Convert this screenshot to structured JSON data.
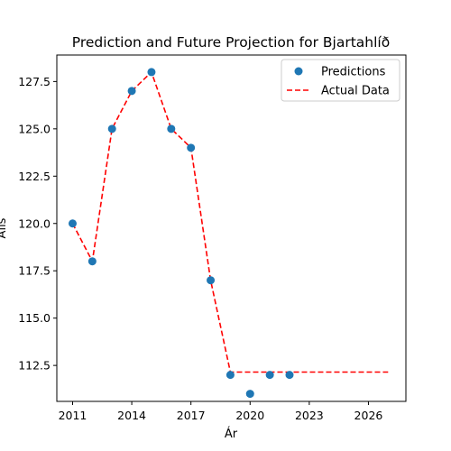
{
  "chart_data": {
    "type": "scatter",
    "title": "Prediction and Future Projection for Bjartahlíð",
    "xlabel": "Ár",
    "ylabel": "Alls",
    "xlim": [
      2010.2,
      2027.9
    ],
    "ylim": [
      110.6,
      128.9
    ],
    "xticks": [
      2011,
      2014,
      2017,
      2020,
      2023,
      2026
    ],
    "yticks": [
      112.5,
      115.0,
      117.5,
      120.0,
      122.5,
      125.0,
      127.5
    ],
    "xtick_labels": [
      "2011",
      "2014",
      "2017",
      "2020",
      "2023",
      "2026"
    ],
    "ytick_labels": [
      "112.5",
      "115.0",
      "117.5",
      "120.0",
      "122.5",
      "125.0",
      "127.5"
    ],
    "grid": false,
    "legend_position": "top-right",
    "series": [
      {
        "name": "Predictions",
        "kind": "scatter",
        "color": "#1f77b4",
        "x": [
          2011,
          2012,
          2013,
          2014,
          2015,
          2016,
          2017,
          2018,
          2019,
          2020,
          2021,
          2022
        ],
        "y": [
          120,
          118,
          125,
          127,
          128,
          125,
          124,
          117,
          112,
          111,
          112,
          112
        ]
      },
      {
        "name": "Actual Data",
        "kind": "line",
        "style": "dashed",
        "color": "#ff0000",
        "x": [
          2011,
          2012,
          2013,
          2014,
          2015,
          2016,
          2017,
          2018,
          2019,
          2020,
          2021,
          2022,
          2023,
          2024,
          2025,
          2026,
          2027
        ],
        "y": [
          120,
          118,
          125,
          127,
          128,
          125,
          124,
          117,
          112.15,
          112.15,
          112.15,
          112.15,
          112.15,
          112.15,
          112.15,
          112.15,
          112.15
        ]
      }
    ]
  }
}
